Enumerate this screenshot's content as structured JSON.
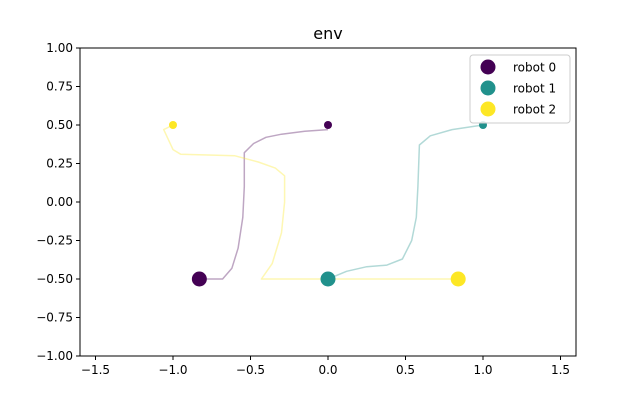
{
  "chart_data": {
    "type": "scatter",
    "title": "env",
    "xlabel": "",
    "ylabel": "",
    "xlim": [
      -1.6,
      1.6
    ],
    "ylim": [
      -1.0,
      1.0
    ],
    "xticks": [
      -1.5,
      -1.0,
      -0.5,
      0.0,
      0.5,
      1.0,
      1.5
    ],
    "yticks": [
      -1.0,
      -0.75,
      -0.5,
      -0.25,
      0.0,
      0.25,
      0.5,
      0.75,
      1.0
    ],
    "xtick_labels": [
      "−1.5",
      "−1.0",
      "−0.5",
      "0.0",
      "0.5",
      "1.0",
      "1.5"
    ],
    "ytick_labels": [
      "−1.00",
      "−0.75",
      "−0.50",
      "−0.25",
      "0.00",
      "0.25",
      "0.50",
      "0.75",
      "1.00"
    ],
    "grid": false,
    "legend_position": "top-right",
    "series": [
      {
        "name": "robot 0",
        "color": "#440154",
        "start": [
          -0.83,
          -0.5
        ],
        "goal": [
          0.0,
          0.5
        ],
        "path": [
          [
            -0.83,
            -0.5
          ],
          [
            -0.68,
            -0.5
          ],
          [
            -0.62,
            -0.43
          ],
          [
            -0.58,
            -0.3
          ],
          [
            -0.55,
            -0.1
          ],
          [
            -0.54,
            0.1
          ],
          [
            -0.54,
            0.32
          ],
          [
            -0.48,
            0.38
          ],
          [
            -0.4,
            0.42
          ],
          [
            -0.3,
            0.44
          ],
          [
            -0.15,
            0.46
          ],
          [
            0.0,
            0.47
          ]
        ]
      },
      {
        "name": "robot 1",
        "color": "#21918c",
        "start": [
          0.0,
          -0.5
        ],
        "goal": [
          1.0,
          0.5
        ],
        "path": [
          [
            0.0,
            -0.5
          ],
          [
            0.12,
            -0.45
          ],
          [
            0.25,
            -0.42
          ],
          [
            0.38,
            -0.41
          ],
          [
            0.48,
            -0.37
          ],
          [
            0.54,
            -0.25
          ],
          [
            0.57,
            -0.1
          ],
          [
            0.58,
            0.1
          ],
          [
            0.59,
            0.37
          ],
          [
            0.66,
            0.43
          ],
          [
            0.8,
            0.47
          ],
          [
            1.0,
            0.5
          ]
        ]
      },
      {
        "name": "robot 2",
        "color": "#fde725",
        "start": [
          0.84,
          -0.5
        ],
        "goal": [
          -1.0,
          0.5
        ],
        "path": [
          [
            0.84,
            -0.5
          ],
          [
            -0.43,
            -0.5
          ],
          [
            -0.36,
            -0.4
          ],
          [
            -0.3,
            -0.2
          ],
          [
            -0.28,
            0.0
          ],
          [
            -0.28,
            0.17
          ],
          [
            -0.34,
            0.22
          ],
          [
            -0.45,
            0.26
          ],
          [
            -0.6,
            0.3
          ],
          [
            -0.95,
            0.31
          ],
          [
            -1.0,
            0.34
          ],
          [
            -1.06,
            0.47
          ],
          [
            -1.0,
            0.5
          ]
        ]
      }
    ]
  }
}
